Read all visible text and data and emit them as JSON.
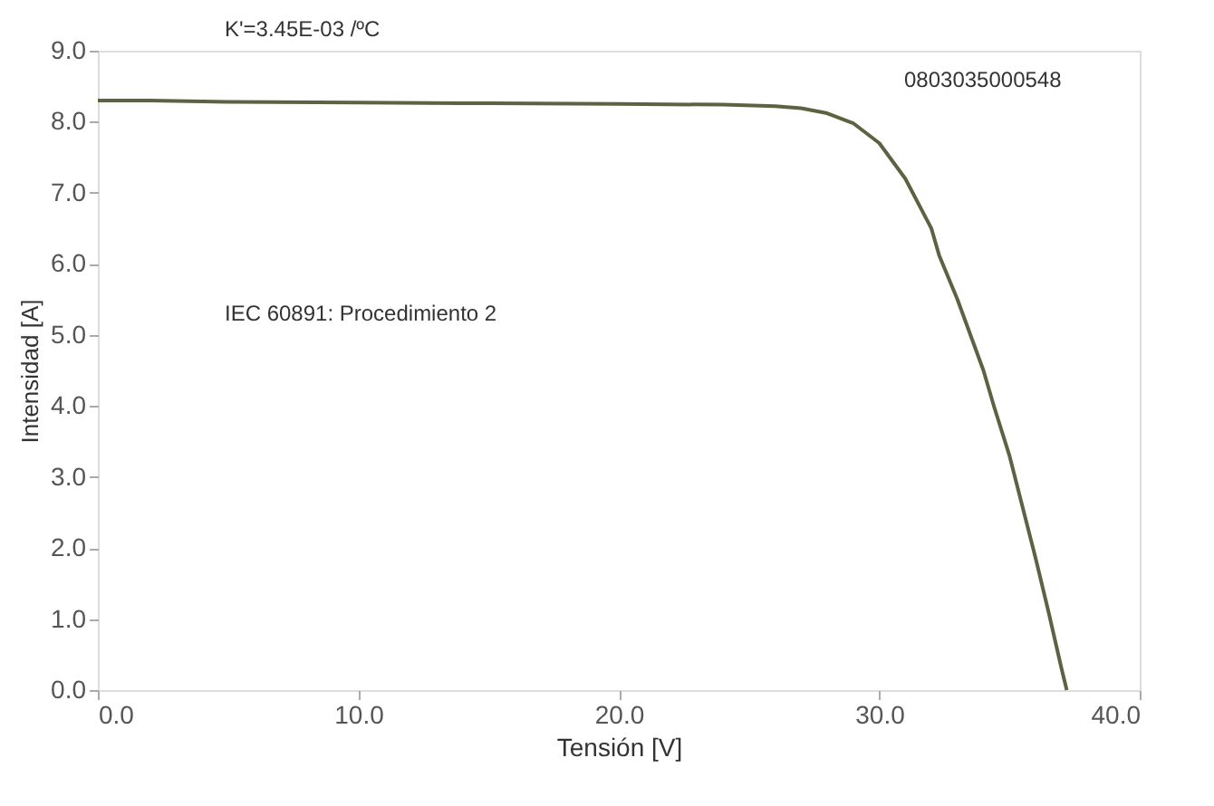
{
  "chart_data": {
    "type": "line",
    "xlabel": "Tensión [V]",
    "ylabel": "Intensidad [A]",
    "x": [
      0,
      2,
      5,
      10,
      15,
      20,
      24,
      26,
      27,
      28,
      29,
      30,
      31,
      32,
      32.3,
      33,
      34,
      34.4,
      35,
      36,
      36.5,
      37,
      37.2
    ],
    "series": [
      {
        "color": "#5b6342",
        "values": [
          8.3,
          8.3,
          8.28,
          8.27,
          8.26,
          8.25,
          8.24,
          8.22,
          8.19,
          8.12,
          7.98,
          7.7,
          7.2,
          6.5,
          6.12,
          5.5,
          4.5,
          4.0,
          3.3,
          1.86,
          1.1,
          0.3,
          0
        ]
      }
    ],
    "xlim": [
      0,
      40
    ],
    "ylim": [
      0,
      9
    ],
    "xticks": [
      {
        "value": 0,
        "label": "0.0"
      },
      {
        "value": 10,
        "label": "10.0"
      },
      {
        "value": 20,
        "label": "20.0"
      },
      {
        "value": 30,
        "label": "30.0"
      },
      {
        "value": 40,
        "label": "40.0"
      }
    ],
    "yticks": [
      {
        "value": 0,
        "label": "0.0"
      },
      {
        "value": 1,
        "label": "1.0"
      },
      {
        "value": 2,
        "label": "2.0"
      },
      {
        "value": 3,
        "label": "3.0"
      },
      {
        "value": 4,
        "label": "4.0"
      },
      {
        "value": 5,
        "label": "5.0"
      },
      {
        "value": 6,
        "label": "6.0"
      },
      {
        "value": 7,
        "label": "7.0"
      },
      {
        "value": 8,
        "label": "8.0"
      },
      {
        "value": 9,
        "label": "9.0"
      }
    ],
    "marker": "none",
    "line_style": "solid",
    "annotations": [
      "K'=3.45E-03 /ºC",
      "0803035000548",
      "IEC 60891: Procedimiento 2"
    ]
  }
}
